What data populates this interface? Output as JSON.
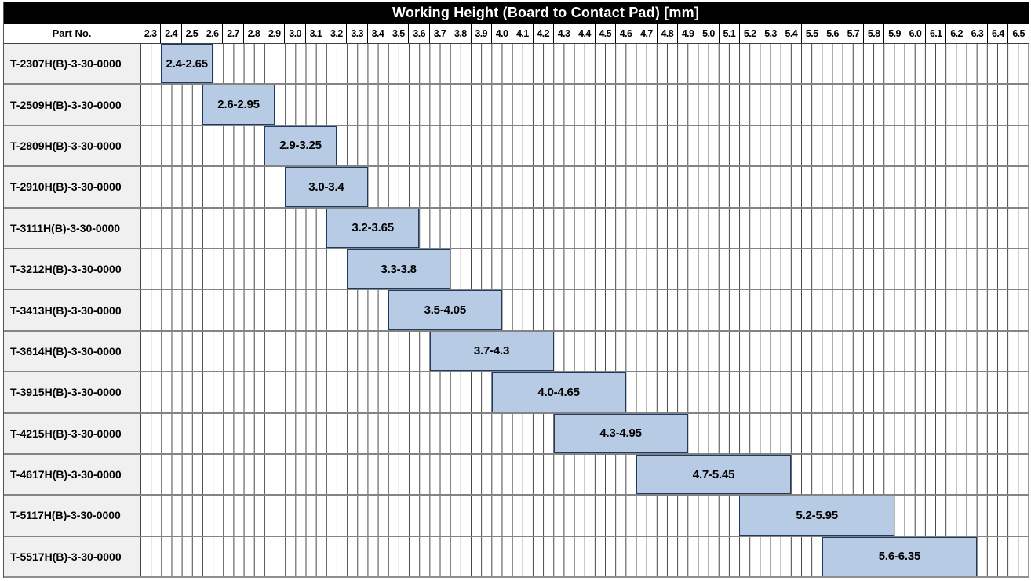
{
  "title": "Working Height (Board to Contact Pad) [mm]",
  "header": {
    "part_no": "Part No."
  },
  "axis": {
    "unit": "mm",
    "min": 2.3,
    "max": 6.5,
    "step": 0.1,
    "substep": 0.05,
    "tick_labels": [
      "2.3",
      "2.4",
      "2.5",
      "2.6",
      "2.7",
      "2.8",
      "2.9",
      "3.0",
      "3.1",
      "3.2",
      "3.3",
      "3.4",
      "3.5",
      "3.6",
      "3.7",
      "3.8",
      "3.9",
      "4.0",
      "4.1",
      "4.2",
      "4.3",
      "4.4",
      "4.5",
      "4.6",
      "4.7",
      "4.8",
      "4.9",
      "5.0",
      "5.1",
      "5.2",
      "5.3",
      "5.4",
      "5.5",
      "5.6",
      "5.7",
      "5.8",
      "5.9",
      "6.0",
      "6.1",
      "6.2",
      "6.3",
      "6.4",
      "6.5"
    ]
  },
  "colors": {
    "bar_fill": "#b8cbe4",
    "bar_border": "#1f3a5f",
    "grid_line": "#454545",
    "row_separator": "#848484",
    "label_bg": "#f0f0f0",
    "title_bg": "#000000",
    "title_fg": "#ffffff"
  },
  "chart_data": {
    "type": "bar",
    "orientation": "horizontal-range",
    "title": "Working Height (Board to Contact Pad) [mm]",
    "x_axis_ticks_mm": [
      2.3,
      6.5
    ],
    "xlim": [
      2.3,
      6.6
    ],
    "grid": true,
    "rows": [
      {
        "part_no": "T-2307H(B)-3-30-0000",
        "start": 2.4,
        "end": 2.65,
        "range_label": "2.4-2.65"
      },
      {
        "part_no": "T-2509H(B)-3-30-0000",
        "start": 2.6,
        "end": 2.95,
        "range_label": "2.6-2.95"
      },
      {
        "part_no": "T-2809H(B)-3-30-0000",
        "start": 2.9,
        "end": 3.25,
        "range_label": "2.9-3.25"
      },
      {
        "part_no": "T-2910H(B)-3-30-0000",
        "start": 3.0,
        "end": 3.4,
        "range_label": "3.0-3.4"
      },
      {
        "part_no": "T-3111H(B)-3-30-0000",
        "start": 3.2,
        "end": 3.65,
        "range_label": "3.2-3.65"
      },
      {
        "part_no": "T-3212H(B)-3-30-0000",
        "start": 3.3,
        "end": 3.8,
        "range_label": "3.3-3.8"
      },
      {
        "part_no": "T-3413H(B)-3-30-0000",
        "start": 3.5,
        "end": 4.05,
        "range_label": "3.5-4.05"
      },
      {
        "part_no": "T-3614H(B)-3-30-0000",
        "start": 3.7,
        "end": 4.3,
        "range_label": "3.7-4.3"
      },
      {
        "part_no": "T-3915H(B)-3-30-0000",
        "start": 4.0,
        "end": 4.65,
        "range_label": "4.0-4.65"
      },
      {
        "part_no": "T-4215H(B)-3-30-0000",
        "start": 4.3,
        "end": 4.95,
        "range_label": "4.3-4.95"
      },
      {
        "part_no": "T-4617H(B)-3-30-0000",
        "start": 4.7,
        "end": 5.45,
        "range_label": "4.7-5.45"
      },
      {
        "part_no": "T-5117H(B)-3-30-0000",
        "start": 5.2,
        "end": 5.95,
        "range_label": "5.2-5.95"
      },
      {
        "part_no": "T-5517H(B)-3-30-0000",
        "start": 5.6,
        "end": 6.35,
        "range_label": "5.6-6.35"
      }
    ]
  }
}
